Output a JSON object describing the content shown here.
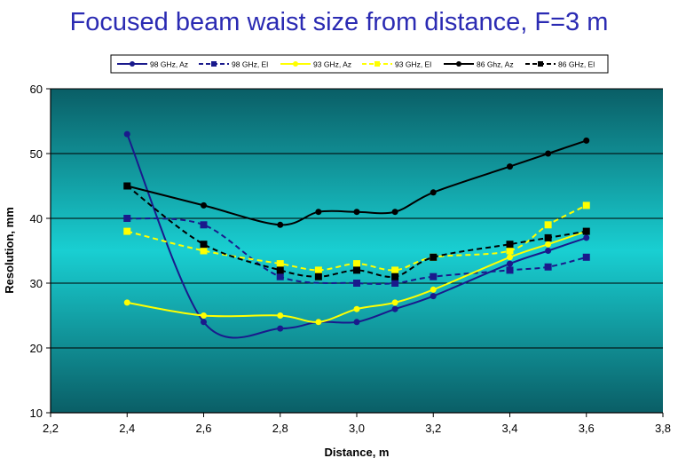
{
  "chart_data": {
    "type": "line",
    "title": "Focused beam waist size from distance, F=3 m",
    "xlabel": "Distance, m",
    "ylabel": "Resolution, mm",
    "xlim": [
      2.2,
      3.8
    ],
    "ylim": [
      10,
      60
    ],
    "x_ticks": [
      "2,2",
      "2,4",
      "2,6",
      "2,8",
      "3,0",
      "3,2",
      "3,4",
      "3,6",
      "3,8"
    ],
    "y_ticks": [
      "10",
      "20",
      "30",
      "40",
      "50",
      "60"
    ],
    "legend_position": "top",
    "background": "teal gradient",
    "series": [
      {
        "name": "98 GHz, Az",
        "color": "#1a1a8c",
        "line": "solid",
        "marker": "circle",
        "x": [
          2.4,
          2.6,
          2.8,
          2.9,
          3.0,
          3.1,
          3.2,
          3.4,
          3.5,
          3.6
        ],
        "y": [
          53,
          24,
          23,
          24,
          24,
          26,
          28,
          33,
          35,
          37
        ]
      },
      {
        "name": "98 GHz, El",
        "color": "#1a1a8c",
        "line": "dashed",
        "marker": "square",
        "x": [
          2.4,
          2.6,
          2.8,
          3.0,
          3.1,
          3.2,
          3.4,
          3.5,
          3.6
        ],
        "y": [
          40,
          39,
          31,
          30,
          30,
          31,
          32,
          32.5,
          34
        ]
      },
      {
        "name": "93 GHz, Az",
        "color": "#ffff00",
        "line": "solid",
        "marker": "circle",
        "x": [
          2.4,
          2.6,
          2.8,
          2.9,
          3.0,
          3.1,
          3.2,
          3.4,
          3.5,
          3.6
        ],
        "y": [
          27,
          25,
          25,
          24,
          26,
          27,
          29,
          34,
          36,
          38
        ]
      },
      {
        "name": "93 GHz, El",
        "color": "#ffff00",
        "line": "dashed",
        "marker": "square",
        "x": [
          2.4,
          2.6,
          2.8,
          2.9,
          3.0,
          3.1,
          3.2,
          3.4,
          3.5,
          3.6
        ],
        "y": [
          38,
          35,
          33,
          32,
          33,
          32,
          34,
          35,
          39,
          42
        ]
      },
      {
        "name": "86 Ghz, Az",
        "color": "#000000",
        "line": "solid",
        "marker": "circle",
        "x": [
          2.4,
          2.6,
          2.8,
          2.9,
          3.0,
          3.1,
          3.2,
          3.4,
          3.5,
          3.6
        ],
        "y": [
          45,
          42,
          39,
          41,
          41,
          41,
          44,
          48,
          50,
          52
        ]
      },
      {
        "name": "86 GHz, El",
        "color": "#000000",
        "line": "dashed",
        "marker": "square",
        "x": [
          2.4,
          2.6,
          2.8,
          2.9,
          3.0,
          3.1,
          3.2,
          3.4,
          3.5,
          3.6
        ],
        "y": [
          45,
          36,
          32,
          31,
          32,
          31,
          34,
          36,
          37,
          38
        ]
      }
    ]
  }
}
